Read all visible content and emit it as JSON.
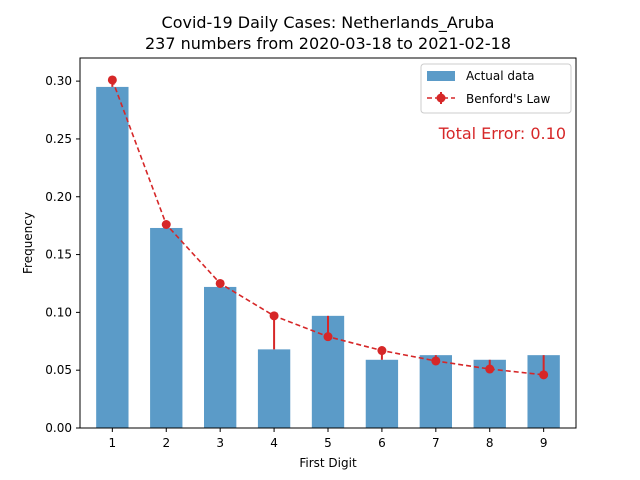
{
  "colors": {
    "bar": "#5b9bc8",
    "benford": "#d62728",
    "axis": "#000000"
  },
  "chart_data": {
    "type": "bar",
    "title": "Covid-19 Daily Cases: Netherlands_Aruba",
    "subtitle": "237 numbers from 2020-03-18 to 2021-02-18",
    "xlabel": "First Digit",
    "ylabel": "Frequency",
    "categories": [
      "1",
      "2",
      "3",
      "4",
      "5",
      "6",
      "7",
      "8",
      "9"
    ],
    "series": [
      {
        "name": "Actual data",
        "type": "bar",
        "values": [
          0.295,
          0.173,
          0.122,
          0.068,
          0.097,
          0.059,
          0.063,
          0.059,
          0.063
        ]
      },
      {
        "name": "Benford's Law",
        "type": "line",
        "style": "dashed-with-markers",
        "values": [
          0.301,
          0.176,
          0.125,
          0.097,
          0.079,
          0.067,
          0.058,
          0.051,
          0.046
        ]
      }
    ],
    "ylim": [
      0,
      0.32
    ],
    "yticks": [
      "0.00",
      "0.05",
      "0.10",
      "0.15",
      "0.20",
      "0.25",
      "0.30"
    ],
    "legend_position": "top-right",
    "annotation": "Total Error: 0.10",
    "grid": false
  }
}
